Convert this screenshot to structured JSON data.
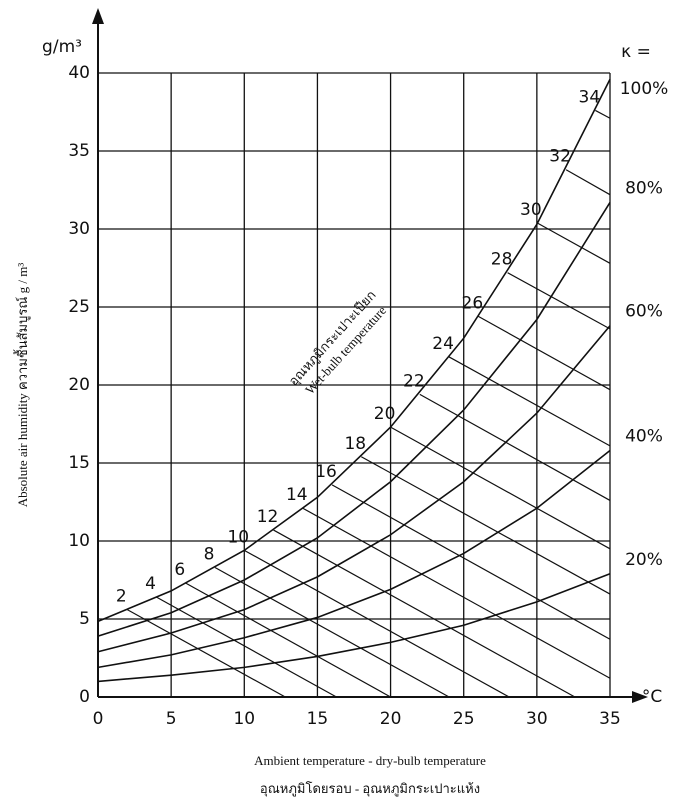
{
  "chart_data": {
    "type": "line",
    "y_unit": "g/m³",
    "x_unit": "°C",
    "rh_symbol": "κ =",
    "ylabel": "Absolute air humidity ความชื้นสัมบูรณ์ g / m³",
    "xlabel": [
      "Ambient temperature - dry-bulb temperature",
      "อุณหภูมิโดยรอบ - อุณหภูมิกระเปาะแห้ง"
    ],
    "wet_bulb_label": [
      "อุณหภูมิกระเปาะเปียก",
      "Wet-bulb temperature"
    ],
    "xlim": [
      0,
      35
    ],
    "ylim": [
      0,
      40
    ],
    "xticks": [
      0,
      5,
      10,
      15,
      20,
      25,
      30,
      35
    ],
    "yticks": [
      0,
      5,
      10,
      15,
      20,
      25,
      30,
      35,
      40
    ],
    "grid": true,
    "color": "#111111",
    "series": [
      {
        "name": "100%",
        "x": [
          0,
          5,
          10,
          15,
          20,
          25,
          30,
          35
        ],
        "values": [
          4.85,
          6.8,
          9.4,
          12.8,
          17.3,
          23.0,
          30.3,
          39.6
        ]
      },
      {
        "name": "80%",
        "x": [
          0,
          5,
          10,
          15,
          20,
          25,
          30,
          35
        ],
        "values": [
          3.9,
          5.4,
          7.5,
          10.2,
          13.8,
          18.4,
          24.2,
          31.7
        ]
      },
      {
        "name": "60%",
        "x": [
          0,
          5,
          10,
          15,
          20,
          25,
          30,
          35
        ],
        "values": [
          2.9,
          4.1,
          5.6,
          7.7,
          10.4,
          13.8,
          18.2,
          23.8
        ]
      },
      {
        "name": "40%",
        "x": [
          0,
          5,
          10,
          15,
          20,
          25,
          30,
          35
        ],
        "values": [
          1.9,
          2.7,
          3.8,
          5.1,
          6.9,
          9.2,
          12.1,
          15.8
        ]
      },
      {
        "name": "20%",
        "x": [
          0,
          5,
          10,
          15,
          20,
          25,
          30,
          35
        ],
        "values": [
          1.0,
          1.4,
          1.9,
          2.6,
          3.5,
          4.6,
          6.1,
          7.9
        ]
      }
    ],
    "wet_bulb_lines": [
      {
        "name": "2",
        "x": [
          2,
          12.8
        ],
        "values": [
          5.6,
          0
        ]
      },
      {
        "name": "4",
        "x": [
          4,
          16.3
        ],
        "values": [
          6.4,
          0
        ]
      },
      {
        "name": "6",
        "x": [
          6,
          20.0
        ],
        "values": [
          7.3,
          0
        ]
      },
      {
        "name": "8",
        "x": [
          8,
          24.0
        ],
        "values": [
          8.3,
          0
        ]
      },
      {
        "name": "10",
        "x": [
          10,
          28.1
        ],
        "values": [
          9.4,
          0
        ]
      },
      {
        "name": "12",
        "x": [
          12,
          32.6
        ],
        "values": [
          10.7,
          0
        ]
      },
      {
        "name": "14",
        "x": [
          14,
          35
        ],
        "values": [
          12.1,
          1.2
        ]
      },
      {
        "name": "16",
        "x": [
          16,
          35
        ],
        "values": [
          13.6,
          3.7
        ]
      },
      {
        "name": "18",
        "x": [
          18,
          35
        ],
        "values": [
          15.4,
          6.6
        ]
      },
      {
        "name": "20",
        "x": [
          20,
          35
        ],
        "values": [
          17.3,
          9.5
        ]
      },
      {
        "name": "22",
        "x": [
          22,
          35
        ],
        "values": [
          19.4,
          12.6
        ]
      },
      {
        "name": "24",
        "x": [
          24,
          35
        ],
        "values": [
          21.8,
          16.1
        ]
      },
      {
        "name": "26",
        "x": [
          26,
          35
        ],
        "values": [
          24.4,
          19.7
        ]
      },
      {
        "name": "28",
        "x": [
          28,
          35
        ],
        "values": [
          27.2,
          23.6
        ]
      },
      {
        "name": "30",
        "x": [
          30,
          35
        ],
        "values": [
          30.4,
          27.8
        ]
      },
      {
        "name": "32",
        "x": [
          32,
          35
        ],
        "values": [
          33.8,
          32.2
        ]
      },
      {
        "name": "34",
        "x": [
          34,
          35
        ],
        "values": [
          37.6,
          37.1
        ]
      }
    ]
  }
}
